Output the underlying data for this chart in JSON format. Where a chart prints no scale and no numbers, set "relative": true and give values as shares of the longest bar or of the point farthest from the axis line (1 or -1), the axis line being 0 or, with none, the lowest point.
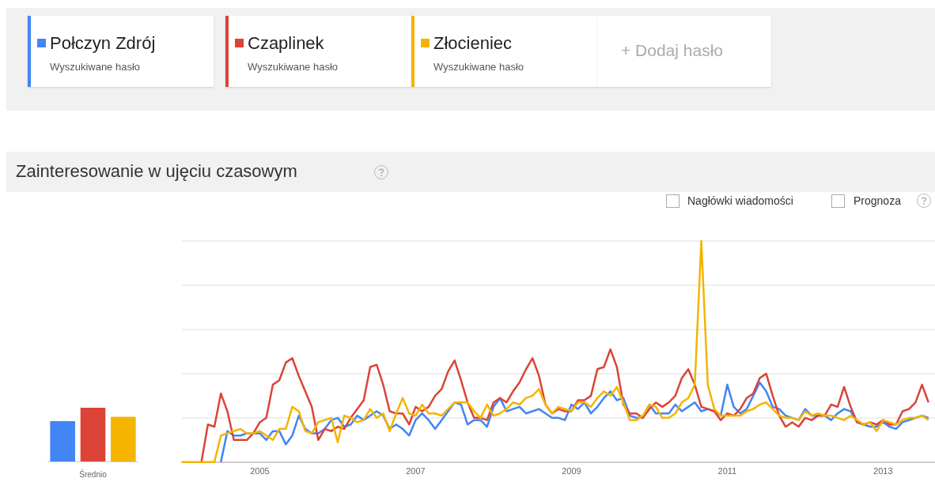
{
  "chart_data": [
    {
      "type": "bar",
      "relative": true,
      "categories": [
        null,
        "Średnio",
        null
      ],
      "values": [
        0.75,
        1,
        0.83
      ],
      "colors": [
        "#4285f4",
        "#db4437",
        "#f4b400"
      ]
    },
    {
      "type": "line",
      "relative": true,
      "title": "Zainteresowanie w ujęciu czasowym",
      "legend": "top left",
      "grid": "y",
      "marker": "none",
      "annotations": [
        "Wyszukiwane hasło",
        "Wyszukiwane hasło",
        "Wyszukiwane hasło",
        "+ Dodaj hasło",
        "Nagłówki wiadomości",
        "Prognoza"
      ],
      "xlim": [
        "2004-01",
        "2013-09"
      ],
      "xticks": [
        "2005",
        "2007",
        "2009",
        "2011",
        "2013"
      ],
      "x": [
        "2004-01",
        "2004-02",
        "2004-03",
        "2004-04",
        "2004-05",
        "2004-06",
        "2004-07",
        "2004-08",
        "2004-09",
        "2004-10",
        "2004-11",
        "2004-12",
        "2005-01",
        "2005-02",
        "2005-03",
        "2005-04",
        "2005-05",
        "2005-06",
        "2005-07",
        "2005-08",
        "2005-09",
        "2005-10",
        "2005-11",
        "2005-12",
        "2006-01",
        "2006-02",
        "2006-03",
        "2006-04",
        "2006-05",
        "2006-06",
        "2006-07",
        "2006-08",
        "2006-09",
        "2006-10",
        "2006-11",
        "2006-12",
        "2007-01",
        "2007-02",
        "2007-03",
        "2007-04",
        "2007-05",
        "2007-06",
        "2007-07",
        "2007-08",
        "2007-09",
        "2007-10",
        "2007-11",
        "2007-12",
        "2008-01",
        "2008-02",
        "2008-03",
        "2008-04",
        "2008-05",
        "2008-06",
        "2008-07",
        "2008-08",
        "2008-09",
        "2008-10",
        "2008-11",
        "2008-12",
        "2009-01",
        "2009-02",
        "2009-03",
        "2009-04",
        "2009-05",
        "2009-06",
        "2009-07",
        "2009-08",
        "2009-09",
        "2009-10",
        "2009-11",
        "2009-12",
        "2010-01",
        "2010-02",
        "2010-03",
        "2010-04",
        "2010-05",
        "2010-06",
        "2010-07",
        "2010-08",
        "2010-09",
        "2010-10",
        "2010-11",
        "2010-12",
        "2011-01",
        "2011-02",
        "2011-03",
        "2011-04",
        "2011-05",
        "2011-06",
        "2011-07",
        "2011-08",
        "2011-09",
        "2011-10",
        "2011-11",
        "2011-12",
        "2012-01",
        "2012-02",
        "2012-03",
        "2012-04",
        "2012-05",
        "2012-06",
        "2012-07",
        "2012-08",
        "2012-09",
        "2012-10",
        "2012-11",
        "2012-12",
        "2013-01",
        "2013-02",
        "2013-03",
        "2013-04",
        "2013-05",
        "2013-06",
        "2013-07",
        "2013-08"
      ],
      "series": [
        {
          "name": "Połczyn Zdrój",
          "color": "#4285f4",
          "values": [
            null,
            null,
            null,
            null,
            null,
            null,
            0,
            0.14,
            0.12,
            0.12,
            0.13,
            0.13,
            0.13,
            0.1,
            0.14,
            0.14,
            0.08,
            0.12,
            0.21,
            0.15,
            0.13,
            0.13,
            0.15,
            0.19,
            0.2,
            0.16,
            0.17,
            0.21,
            0.19,
            0.21,
            0.23,
            0.21,
            0.15,
            0.17,
            0.15,
            0.12,
            0.19,
            0.22,
            0.19,
            0.15,
            0.19,
            0.23,
            0.27,
            0.26,
            0.17,
            0.19,
            0.19,
            0.16,
            0.25,
            0.29,
            0.23,
            0.24,
            0.25,
            0.22,
            0.23,
            0.24,
            0.22,
            0.2,
            0.2,
            0.19,
            0.26,
            0.24,
            0.27,
            0.22,
            0.25,
            0.29,
            0.32,
            0.28,
            0.29,
            0.21,
            0.2,
            0.2,
            0.26,
            0.22,
            0.22,
            0.22,
            0.26,
            0.23,
            0.25,
            0.27,
            0.23,
            0.24,
            0.23,
            0.21,
            0.35,
            0.25,
            0.22,
            0.24,
            0.3,
            0.36,
            0.32,
            0.25,
            0.24,
            0.21,
            0.2,
            0.19,
            0.24,
            0.21,
            0.21,
            0.21,
            0.19,
            0.22,
            0.24,
            0.23,
            0.18,
            0.17,
            0.16,
            0.16,
            0.18,
            0.16,
            0.15,
            0.18,
            0.19,
            0.2,
            0.21,
            0.2
          ]
        },
        {
          "name": "Czaplinek",
          "color": "#db4437",
          "values": [
            null,
            null,
            null,
            0,
            0.17,
            0.16,
            0.31,
            0.23,
            0.1,
            0.1,
            0.1,
            0.13,
            0.18,
            0.2,
            0.35,
            0.37,
            0.45,
            0.47,
            0.39,
            0.32,
            0.25,
            0.1,
            0.15,
            0.14,
            0.16,
            0.15,
            0.2,
            0.24,
            0.28,
            0.43,
            0.44,
            0.35,
            0.23,
            0.22,
            0.22,
            0.17,
            0.25,
            0.23,
            0.25,
            0.3,
            0.33,
            0.41,
            0.46,
            0.37,
            0.27,
            0.2,
            0.2,
            0.19,
            0.27,
            0.29,
            0.27,
            0.32,
            0.36,
            0.42,
            0.47,
            0.39,
            0.26,
            0.22,
            0.24,
            0.23,
            0.23,
            0.28,
            0.28,
            0.3,
            0.42,
            0.43,
            0.51,
            0.43,
            0.26,
            0.22,
            0.22,
            0.2,
            0.24,
            0.27,
            0.25,
            0.27,
            0.3,
            0.38,
            0.42,
            0.35,
            0.25,
            0.24,
            0.23,
            0.19,
            0.22,
            0.21,
            0.24,
            0.29,
            0.31,
            0.38,
            0.4,
            0.3,
            0.21,
            0.16,
            0.18,
            0.16,
            0.2,
            0.19,
            0.21,
            0.21,
            0.26,
            0.25,
            0.34,
            0.25,
            0.18,
            0.17,
            0.18,
            0.17,
            0.19,
            0.17,
            0.17,
            0.23,
            0.24,
            0.27,
            0.35,
            0.27
          ]
        },
        {
          "name": "Złocieniec",
          "color": "#f4b400",
          "values": [
            0,
            0,
            0,
            0,
            0,
            0,
            0.12,
            0.13,
            0.14,
            0.15,
            0.13,
            0.13,
            0.14,
            0.12,
            0.1,
            0.15,
            0.15,
            0.25,
            0.23,
            0.14,
            0.13,
            0.18,
            0.19,
            0.2,
            0.09,
            0.21,
            0.2,
            0.18,
            0.19,
            0.24,
            0.2,
            0.22,
            0.14,
            0.22,
            0.29,
            0.22,
            0.21,
            0.26,
            0.22,
            0.22,
            0.21,
            0.24,
            0.27,
            0.27,
            0.27,
            0.23,
            0.2,
            0.26,
            0.21,
            0.22,
            0.24,
            0.27,
            0.26,
            0.29,
            0.3,
            0.33,
            0.26,
            0.22,
            0.25,
            0.24,
            0.23,
            0.27,
            0.27,
            0.25,
            0.29,
            0.32,
            0.3,
            0.34,
            0.27,
            0.19,
            0.19,
            0.21,
            0.26,
            0.25,
            0.2,
            0.2,
            0.22,
            0.27,
            0.29,
            0.35,
            1,
            0.35,
            0.24,
            0.21,
            0.21,
            0.21,
            0.21,
            0.23,
            0.24,
            0.26,
            0.27,
            0.24,
            0.21,
            0.2,
            0.2,
            0.19,
            0.23,
            0.21,
            0.22,
            0.21,
            0.21,
            0.2,
            0.19,
            0.21,
            0.19,
            0.17,
            0.18,
            0.14,
            0.19,
            0.18,
            0.17,
            0.19,
            0.2,
            0.2,
            0.21,
            0.19
          ]
        }
      ]
    }
  ]
}
